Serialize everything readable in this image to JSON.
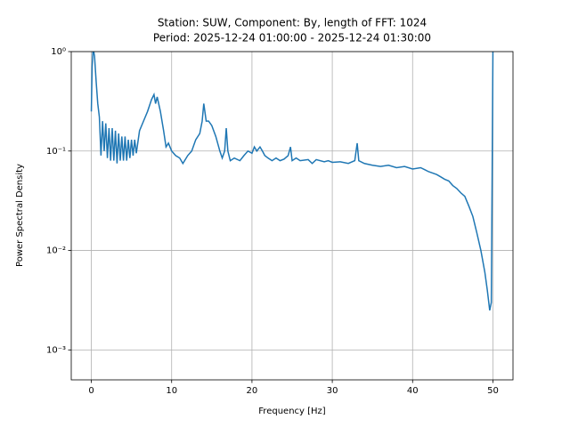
{
  "chart_data": {
    "type": "line",
    "title": "Station: SUW, Component: By, length of FFT: 1024",
    "subtitle": "Period: 2025-12-24 01:00:00 - 2025-12-24 01:30:00",
    "x_label": "Frequency [Hz]",
    "y_label": "Power Spectral Density",
    "log_y": true,
    "grid": true,
    "xlim": [
      -2.5,
      52.5
    ],
    "ylim": [
      0.0005,
      1
    ],
    "xticks": [
      0,
      10,
      20,
      30,
      40,
      50
    ],
    "yticks": [
      {
        "value": 0.001,
        "label": "10⁻³"
      },
      {
        "value": 0.01,
        "label": "10⁻²"
      },
      {
        "value": 0.1,
        "label": "10⁻¹"
      },
      {
        "value": 1,
        "label": "10⁰"
      }
    ],
    "x": [
      0,
      0.1,
      0.2,
      0.3,
      0.4,
      0.6,
      0.8,
      1.0,
      1.2,
      1.4,
      1.6,
      1.8,
      2.0,
      2.2,
      2.4,
      2.6,
      2.8,
      3.0,
      3.2,
      3.4,
      3.6,
      3.8,
      4.0,
      4.2,
      4.4,
      4.6,
      4.8,
      5.0,
      5.2,
      5.4,
      5.6,
      6.0,
      6.5,
      7.0,
      7.5,
      7.8,
      8.0,
      8.2,
      8.6,
      9.0,
      9.3,
      9.6,
      10,
      10.5,
      11,
      11.4,
      12,
      12.5,
      13,
      13.5,
      13.8,
      14.0,
      14.3,
      14.6,
      15,
      15.5,
      16,
      16.3,
      16.6,
      16.8,
      17.0,
      17.3,
      17.8,
      18.5,
      19,
      19.5,
      20,
      20.3,
      20.6,
      21,
      21.3,
      21.6,
      22,
      22.5,
      23,
      23.5,
      24,
      24.5,
      24.8,
      25,
      25.5,
      26,
      27,
      27.5,
      28,
      29,
      29.5,
      30,
      31,
      32,
      32.8,
      33.1,
      33.3,
      34,
      35,
      36,
      37,
      38,
      39,
      40,
      41,
      41.5,
      42,
      42.5,
      43,
      43.5,
      44,
      44.5,
      45,
      45.5,
      46,
      46.5,
      47,
      47.5,
      48,
      48.5,
      49,
      49.3,
      49.6,
      49.8,
      49.9,
      50
    ],
    "series": [
      {
        "name": "PSD",
        "color": "#1f77b4",
        "values": [
          0.25,
          0.7,
          1.0,
          1.0,
          0.9,
          0.5,
          0.3,
          0.22,
          0.09,
          0.2,
          0.1,
          0.19,
          0.085,
          0.17,
          0.08,
          0.17,
          0.08,
          0.16,
          0.075,
          0.15,
          0.08,
          0.14,
          0.08,
          0.14,
          0.08,
          0.13,
          0.085,
          0.13,
          0.09,
          0.13,
          0.095,
          0.16,
          0.2,
          0.25,
          0.33,
          0.37,
          0.3,
          0.35,
          0.25,
          0.16,
          0.11,
          0.12,
          0.1,
          0.09,
          0.085,
          0.075,
          0.09,
          0.1,
          0.13,
          0.15,
          0.2,
          0.3,
          0.2,
          0.2,
          0.18,
          0.14,
          0.1,
          0.085,
          0.1,
          0.17,
          0.1,
          0.08,
          0.085,
          0.08,
          0.09,
          0.1,
          0.095,
          0.11,
          0.1,
          0.11,
          0.1,
          0.09,
          0.085,
          0.08,
          0.085,
          0.08,
          0.083,
          0.09,
          0.11,
          0.08,
          0.085,
          0.08,
          0.082,
          0.075,
          0.082,
          0.078,
          0.08,
          0.077,
          0.078,
          0.075,
          0.08,
          0.12,
          0.08,
          0.075,
          0.072,
          0.07,
          0.072,
          0.068,
          0.07,
          0.066,
          0.068,
          0.065,
          0.062,
          0.06,
          0.058,
          0.055,
          0.052,
          0.05,
          0.045,
          0.042,
          0.038,
          0.035,
          0.028,
          0.022,
          0.015,
          0.01,
          0.006,
          0.004,
          0.0025,
          0.003,
          0.05,
          1.0
        ]
      }
    ]
  }
}
